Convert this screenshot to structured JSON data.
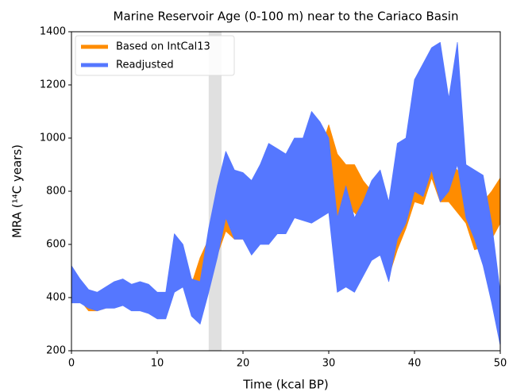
{
  "chart_data": {
    "type": "band",
    "title": "Marine Reservoir Age (0-100 m) near to the Cariaco Basin",
    "x_label": "Time (kcal BP)",
    "y_label": "MRA (¹⁴C years)",
    "x": [
      0,
      1,
      2,
      3,
      4,
      5,
      6,
      7,
      8,
      9,
      10,
      11,
      12,
      13,
      14,
      15,
      16,
      17,
      18,
      19,
      20,
      21,
      22,
      23,
      24,
      25,
      26,
      27,
      28,
      29,
      30,
      31,
      32,
      33,
      34,
      35,
      36,
      37,
      38,
      39,
      40,
      41,
      42,
      43,
      44,
      45,
      46,
      47,
      48,
      49,
      50
    ],
    "series": [
      {
        "name": "Based on IntCal13",
        "color": "#ff8c00",
        "lower": [
          400,
          390,
          350,
          350,
          360,
          370,
          380,
          360,
          360,
          370,
          330,
          330,
          450,
          450,
          340,
          380,
          480,
          560,
          650,
          620,
          620,
          580,
          640,
          600,
          700,
          660,
          700,
          720,
          750,
          760,
          820,
          700,
          740,
          720,
          680,
          640,
          620,
          480,
          580,
          660,
          760,
          750,
          850,
          760,
          760,
          720,
          680,
          580,
          590,
          620,
          680
        ],
        "upper": [
          450,
          440,
          400,
          390,
          400,
          410,
          430,
          420,
          430,
          420,
          380,
          390,
          600,
          580,
          450,
          550,
          620,
          720,
          800,
          760,
          780,
          720,
          780,
          720,
          840,
          800,
          860,
          880,
          920,
          950,
          1050,
          940,
          900,
          900,
          840,
          800,
          780,
          620,
          720,
          820,
          960,
          920,
          1050,
          930,
          900,
          880,
          820,
          740,
          760,
          800,
          850
        ]
      },
      {
        "name": "Readjusted",
        "color": "#5577ff",
        "lower": [
          380,
          380,
          360,
          350,
          360,
          360,
          370,
          350,
          350,
          340,
          320,
          320,
          420,
          440,
          330,
          300,
          420,
          550,
          700,
          620,
          620,
          560,
          600,
          600,
          640,
          640,
          700,
          690,
          680,
          700,
          720,
          420,
          440,
          420,
          480,
          540,
          560,
          460,
          620,
          680,
          800,
          780,
          880,
          760,
          800,
          900,
          700,
          620,
          520,
          380,
          220
        ],
        "upper": [
          520,
          470,
          430,
          420,
          440,
          460,
          470,
          450,
          460,
          450,
          420,
          420,
          640,
          600,
          470,
          460,
          660,
          820,
          950,
          880,
          870,
          840,
          900,
          980,
          960,
          940,
          1000,
          1000,
          1100,
          1060,
          1000,
          700,
          820,
          700,
          760,
          840,
          880,
          760,
          980,
          1000,
          1220,
          1280,
          1340,
          1360,
          1150,
          1360,
          900,
          880,
          860,
          680,
          420
        ]
      }
    ],
    "shaded_span": [
      16,
      17.5
    ],
    "xlim": [
      0,
      50
    ],
    "xticks": [
      0,
      10,
      20,
      30,
      40,
      50
    ],
    "ylim": [
      200,
      1400
    ],
    "yticks": [
      200,
      400,
      600,
      800,
      1000,
      1200,
      1400
    ],
    "legend": "upper left"
  }
}
